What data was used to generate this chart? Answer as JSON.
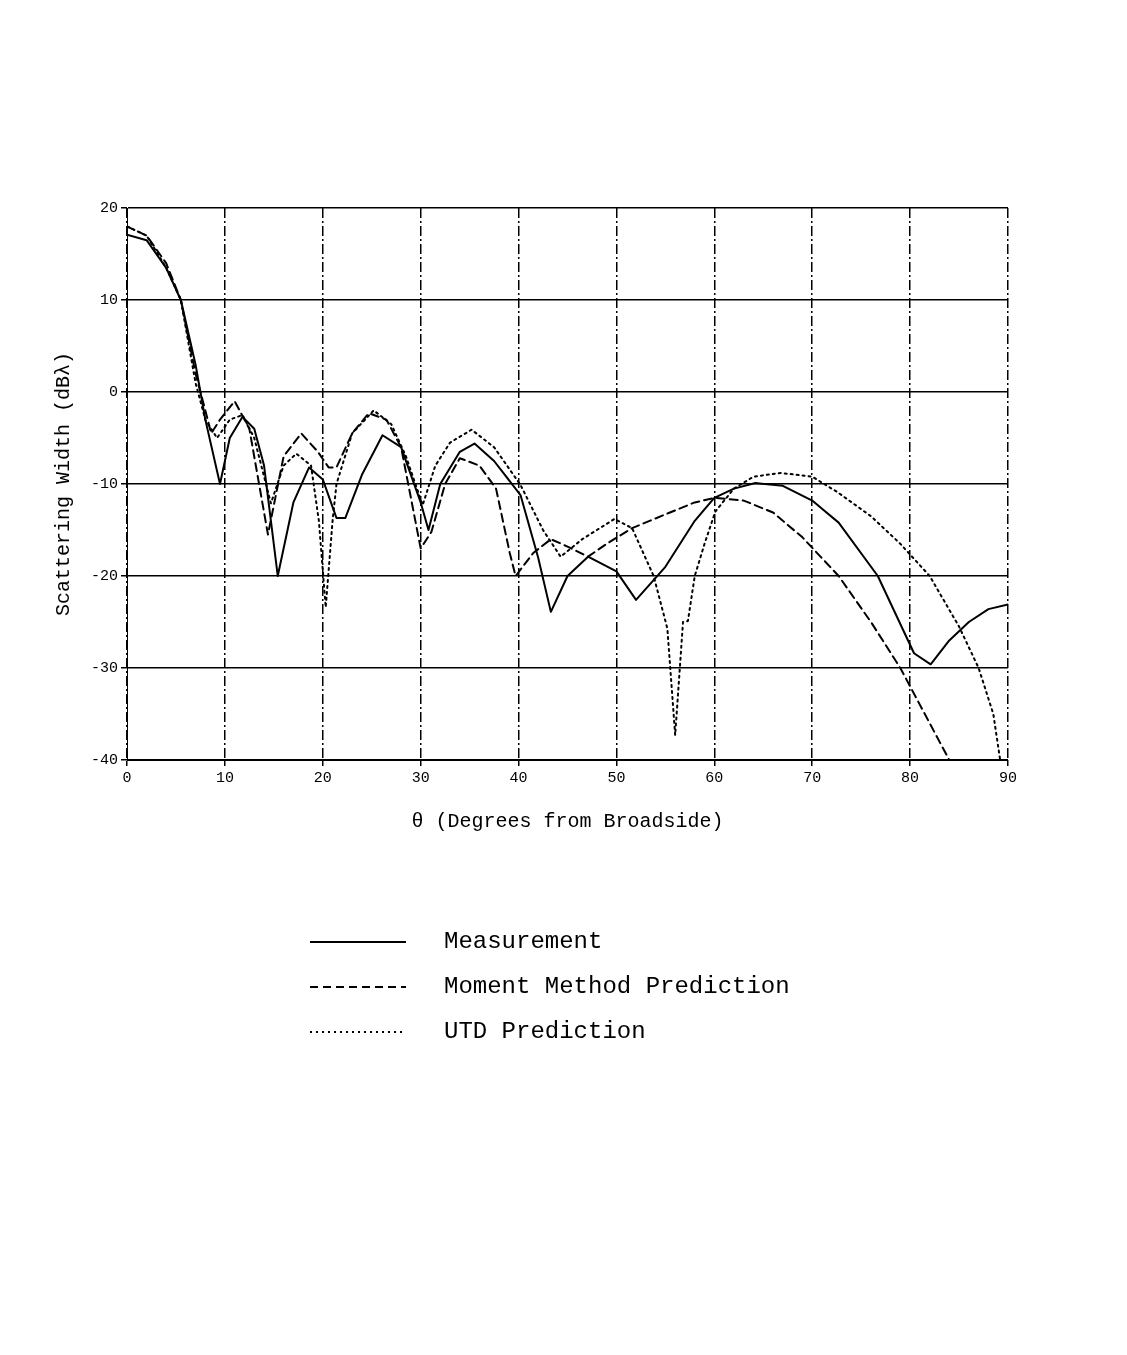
{
  "chart_data": {
    "type": "line",
    "xlabel": "θ (Degrees from Broadside)",
    "ylabel": "Scattering Width (dBλ)",
    "xlim": [
      0,
      90
    ],
    "ylim": [
      -40,
      20
    ],
    "xticks": [
      0,
      10,
      20,
      30,
      40,
      50,
      60,
      70,
      80,
      90
    ],
    "yticks": [
      -40,
      -30,
      -20,
      -10,
      0,
      10,
      20
    ],
    "grid": true,
    "legend": "bottom",
    "marker": "none",
    "series": [
      {
        "name": "Measurement",
        "color": "#000000",
        "line_style": "solid",
        "x": [
          0,
          2,
          4,
          5.5,
          7,
          8,
          9.5,
          10.5,
          11.8,
          13,
          14,
          15.4,
          17,
          18.6,
          20,
          21.4,
          22.3,
          24,
          26.1,
          28,
          29,
          30,
          30.8,
          32,
          34,
          35.5,
          37.5,
          40.2,
          42,
          43.3,
          45,
          47.1,
          50,
          52,
          55,
          58,
          60,
          62,
          64.2,
          67,
          70,
          72.7,
          76.7,
          80.4,
          82.1,
          84,
          86,
          88,
          90
        ],
        "values": [
          17.1,
          16.5,
          13.5,
          10,
          3,
          -3,
          -10,
          -5,
          -2.7,
          -4,
          -8,
          -20,
          -12,
          -8.2,
          -9.5,
          -13.7,
          -13.7,
          -9,
          -4.7,
          -6,
          -9,
          -12,
          -15,
          -10,
          -6.5,
          -5.6,
          -7.5,
          -11.2,
          -18,
          -23.9,
          -20,
          -17.9,
          -19.5,
          -22.6,
          -19,
          -14,
          -11.5,
          -10.5,
          -9.9,
          -10.2,
          -11.8,
          -14.2,
          -20,
          -28.4,
          -29.6,
          -27,
          -25,
          -23.6,
          -23.1
        ]
      },
      {
        "name": "Moment Method Prediction",
        "color": "#000000",
        "line_style": "dashed",
        "x": [
          0,
          2,
          4,
          5.5,
          7,
          8,
          8.6,
          9.5,
          11,
          12.5,
          14.4,
          16,
          17.8,
          19.5,
          20.6,
          21.4,
          23,
          24.7,
          26.5,
          28,
          30,
          31.1,
          32.5,
          34,
          36,
          37.7,
          39.1,
          39.7,
          41.5,
          43.3,
          45,
          47.1,
          49,
          51.6,
          55,
          58,
          60.1,
          63,
          66,
          69,
          72.7,
          76,
          79,
          82,
          84
        ],
        "values": [
          18,
          17,
          14,
          10,
          2,
          -2,
          -4.5,
          -3,
          -1,
          -4,
          -15.5,
          -7,
          -4.5,
          -6.5,
          -8.2,
          -8.2,
          -4.5,
          -2.3,
          -3,
          -6,
          -17,
          -15.2,
          -10,
          -7.2,
          -8,
          -10.5,
          -17.5,
          -20,
          -17.5,
          -16,
          -16.8,
          -17.9,
          -16.5,
          -14.8,
          -13.3,
          -12,
          -11.5,
          -11.8,
          -13.1,
          -15.8,
          -20,
          -25,
          -30,
          -36,
          -40
        ]
      },
      {
        "name": "UTD Prediction",
        "color": "#000000",
        "line_style": "dotted",
        "x": [
          0,
          2,
          4,
          5.5,
          7,
          8,
          9.2,
          10.5,
          11.8,
          13,
          14.7,
          16,
          17.3,
          18.8,
          19.6,
          20.3,
          21,
          21.4,
          23,
          25.2,
          27,
          28.5,
          30.2,
          31.5,
          33,
          35.2,
          37.5,
          40.2,
          42.5,
          44.3,
          46.5,
          49.8,
          51.6,
          53.8,
          55.2,
          56,
          56.8,
          57.3,
          58,
          59,
          60.1,
          62,
          64,
          66.8,
          70,
          72.6,
          76,
          79,
          82,
          85,
          87,
          88.5,
          89.2
        ],
        "values": [
          18,
          17,
          13.5,
          10,
          1,
          -3,
          -5,
          -3,
          -2.5,
          -5,
          -12.1,
          -8,
          -6.7,
          -8,
          -14,
          -23.4,
          -14,
          -10,
          -4.5,
          -2,
          -3.5,
          -7,
          -12.3,
          -8,
          -5.5,
          -4.1,
          -6,
          -10.1,
          -15,
          -17.9,
          -16,
          -13.8,
          -14.8,
          -20,
          -25.7,
          -37.3,
          -25,
          -24.9,
          -20,
          -16.5,
          -13,
          -10.5,
          -9.2,
          -8.8,
          -9.2,
          -10.9,
          -13.5,
          -16.5,
          -20,
          -25.5,
          -30,
          -35,
          -40
        ]
      }
    ]
  }
}
